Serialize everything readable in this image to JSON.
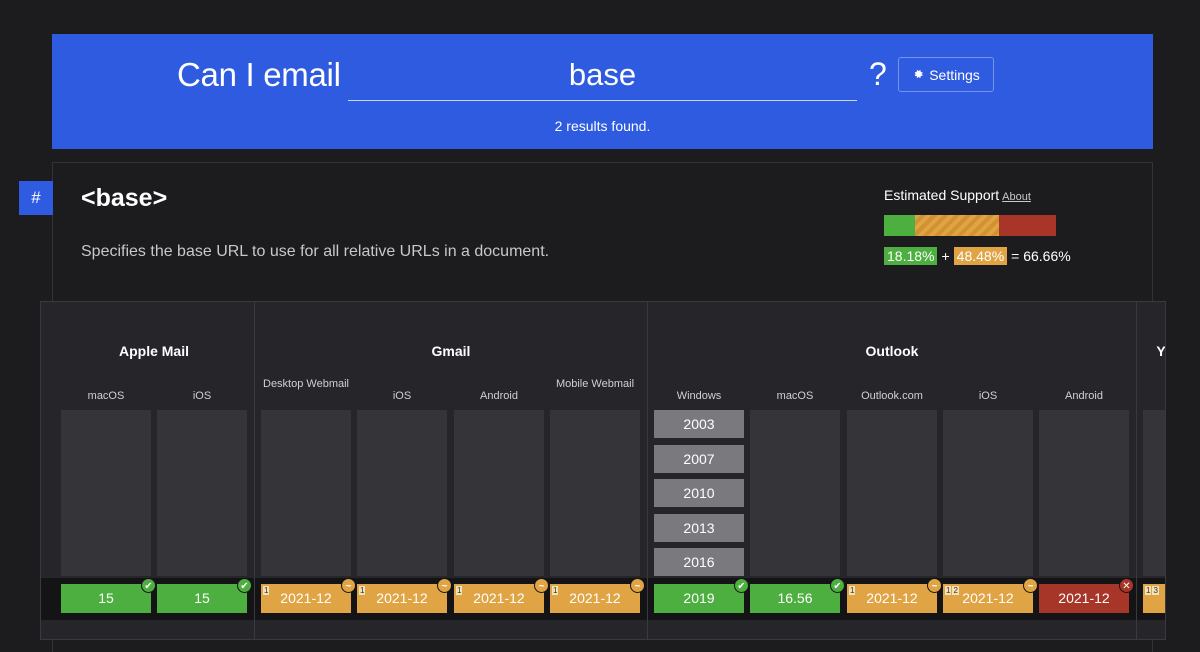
{
  "header": {
    "title": "Can I email",
    "search_value": "base",
    "help": "?",
    "settings_label": "Settings",
    "results": "2 results found."
  },
  "feature": {
    "anchor": "#",
    "title": "<base>",
    "description": "Specifies the base URL to use for all relative URLs in a document.",
    "support_label": "Estimated Support",
    "about_label": "About",
    "supported_pct": "18.18%",
    "plus": "+",
    "partial_pct": "48.48%",
    "equals": "= 66.66%"
  },
  "colors": {
    "supported": "#4caf3f",
    "partial": "#e0a445",
    "unsupported": "#a73528",
    "brand": "#2f5be0"
  },
  "clients": [
    {
      "name": "Apple Mail",
      "platforms": [
        {
          "name": "macOS",
          "value": "15",
          "status": "green",
          "notes": []
        },
        {
          "name": "iOS",
          "value": "15",
          "status": "green",
          "notes": []
        }
      ]
    },
    {
      "name": "Gmail",
      "platforms": [
        {
          "name": "Desktop Webmail",
          "value": "2021-12",
          "status": "orange",
          "notes": [
            "1"
          ]
        },
        {
          "name": "iOS",
          "value": "2021-12",
          "status": "orange",
          "notes": [
            "1"
          ]
        },
        {
          "name": "Android",
          "value": "2021-12",
          "status": "orange",
          "notes": [
            "1"
          ]
        },
        {
          "name": "Mobile Webmail",
          "value": "2021-12",
          "status": "orange",
          "notes": [
            "1"
          ]
        }
      ]
    },
    {
      "name": "Outlook",
      "platforms": [
        {
          "name": "Windows",
          "value": "2019",
          "status": "green",
          "notes": [],
          "versions": [
            "2003",
            "2007",
            "2010",
            "2013",
            "2016"
          ]
        },
        {
          "name": "macOS",
          "value": "16.56",
          "status": "green",
          "notes": []
        },
        {
          "name": "Outlook.com",
          "value": "2021-12",
          "status": "orange",
          "notes": [
            "1"
          ]
        },
        {
          "name": "iOS",
          "value": "2021-12",
          "status": "orange",
          "notes": [
            "1",
            "2"
          ]
        },
        {
          "name": "Android",
          "value": "2021-12",
          "status": "red",
          "notes": []
        }
      ]
    },
    {
      "name": "Y",
      "platforms": [
        {
          "name": "",
          "value": "",
          "status": "orange",
          "notes": [
            "1",
            "3"
          ]
        }
      ]
    }
  ],
  "badge_glyphs": {
    "green": "✔",
    "orange": "~",
    "red": "✕"
  }
}
